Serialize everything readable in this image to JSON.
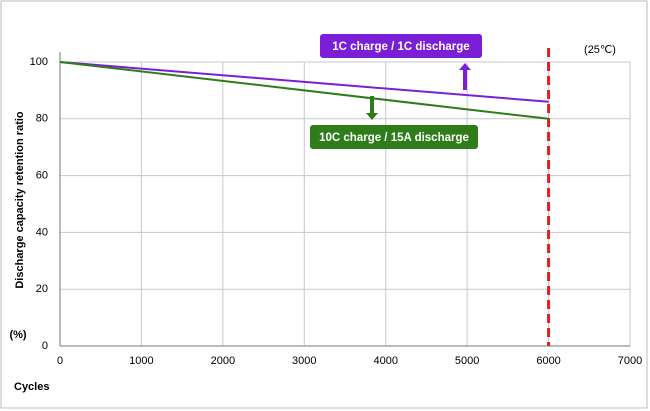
{
  "chart_data": {
    "type": "line",
    "x_label": "Cycles",
    "y_label": "Discharge capacity retention ratio",
    "y_unit": "(%)",
    "note": "(25℃)",
    "x": [
      0,
      6000
    ],
    "series": [
      {
        "name": "1C charge / 1C discharge",
        "color": "#7b1fd6",
        "values": [
          100,
          86
        ]
      },
      {
        "name": "10C charge / 15A discharge",
        "color": "#2e7d1a",
        "values": [
          100,
          80
        ]
      }
    ],
    "xlim": [
      0,
      7000
    ],
    "xticks": [
      0,
      1000,
      2000,
      3000,
      4000,
      5000,
      6000,
      7000
    ],
    "ylim": [
      0,
      100
    ],
    "yticks": [
      0,
      20,
      40,
      60,
      80,
      100
    ],
    "grid": true,
    "reference_line": {
      "x": 6000,
      "color": "#e02020"
    }
  }
}
